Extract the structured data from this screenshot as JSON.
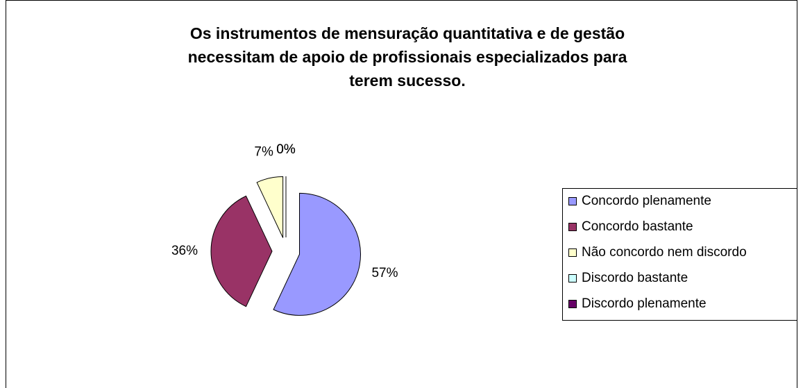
{
  "chart_data": {
    "type": "pie",
    "title": [
      "Os instrumentos de mensuração quantitativa e de gestão",
      "necessitam de apoio de profissionais especializados para",
      "terem sucesso."
    ],
    "categories": [
      "Concordo plenamente",
      "Concordo bastante",
      "Não concordo nem discordo",
      "Discordo bastante",
      "Discordo plenamente"
    ],
    "values": [
      57,
      36,
      7,
      0,
      0
    ],
    "value_labels": [
      "57%",
      "36%",
      "7%",
      "0%",
      "0%"
    ],
    "colors": [
      "#9999ff",
      "#993366",
      "#ffffcc",
      "#ccffff",
      "#660066"
    ],
    "legend": "right"
  }
}
